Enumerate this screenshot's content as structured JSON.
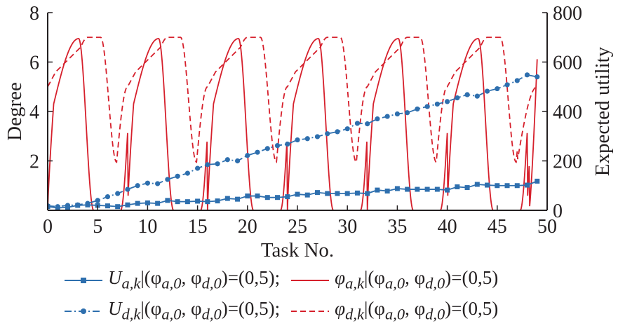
{
  "chart_data": {
    "type": "line",
    "xlabel": "Task No.",
    "ylabel": "Degree",
    "y2label": "Expected utility",
    "xlim": [
      0,
      50
    ],
    "ylim": [
      0,
      8
    ],
    "y2lim": [
      0,
      800
    ],
    "xticks": [
      "0",
      "5",
      "10",
      "15",
      "20",
      "25",
      "30",
      "35",
      "40",
      "45",
      "50"
    ],
    "yticks": [
      "2",
      "4",
      "6",
      "8"
    ],
    "y2ticks": [
      "0",
      "200",
      "400",
      "600",
      "800"
    ],
    "grid": false,
    "legend_position": "bottom",
    "colors": {
      "blue": "#2e6fae",
      "red": "#d6202c",
      "axis": "#231f20"
    },
    "x": [
      0,
      1,
      2,
      3,
      4,
      5,
      6,
      7,
      8,
      9,
      10,
      11,
      12,
      13,
      14,
      15,
      16,
      17,
      18,
      19,
      20,
      21,
      22,
      23,
      24,
      25,
      26,
      27,
      28,
      29,
      30,
      31,
      32,
      33,
      34,
      35,
      36,
      37,
      38,
      39,
      40,
      41,
      42,
      43,
      44,
      45,
      46,
      47,
      48,
      49
    ],
    "series": [
      {
        "name": "U_ak",
        "axis": "right",
        "style": "solid-square",
        "values": [
          15,
          10,
          12,
          20,
          22,
          20,
          18,
          15,
          22,
          28,
          30,
          28,
          40,
          35,
          35,
          37,
          35,
          38,
          48,
          45,
          58,
          58,
          52,
          52,
          55,
          65,
          62,
          72,
          68,
          68,
          68,
          70,
          68,
          82,
          78,
          88,
          85,
          85,
          85,
          85,
          82,
          95,
          92,
          105,
          102,
          100,
          100,
          100,
          102,
          118
        ]
      },
      {
        "name": "U_dk",
        "axis": "right",
        "style": "dashdot-circle",
        "values": [
          18,
          15,
          20,
          22,
          28,
          40,
          55,
          68,
          85,
          100,
          110,
          108,
          125,
          138,
          150,
          170,
          185,
          188,
          205,
          200,
          222,
          235,
          250,
          262,
          268,
          285,
          290,
          298,
          310,
          318,
          330,
          352,
          350,
          370,
          380,
          390,
          395,
          410,
          420,
          430,
          440,
          455,
          468,
          462,
          482,
          492,
          508,
          525,
          548,
          540
        ]
      },
      {
        "name": "phi_ak",
        "axis": "left",
        "style": "solid",
        "period": 8,
        "min": 0,
        "max": 6.95
      },
      {
        "name": "phi_dk",
        "axis": "left",
        "style": "dashed",
        "period": 8,
        "min": 1.95,
        "max": 7.0,
        "start": 5.0
      }
    ],
    "legend": [
      {
        "symbol": "U",
        "sub": "a,k",
        "suffix": "|(φ",
        "sub2": "a,0",
        "mid": ", φ",
        "sub3": "d,0",
        "end": ")=(0,5);"
      },
      {
        "symbol": "φ",
        "sub": "a,k",
        "suffix": "|(φ",
        "sub2": "a,0",
        "mid": ", φ",
        "sub3": "d,0",
        "end": ")=(0,5)"
      },
      {
        "symbol": "U",
        "sub": "d,k",
        "suffix": "|(φ",
        "sub2": "a,0",
        "mid": ", φ",
        "sub3": "d,0",
        "end": ")=(0,5);"
      },
      {
        "symbol": "φ",
        "sub": "d,k",
        "suffix": "|(φ",
        "sub2": "a,0",
        "mid": ", φ",
        "sub3": "d,0",
        "end": ")=(0,5)"
      }
    ]
  }
}
